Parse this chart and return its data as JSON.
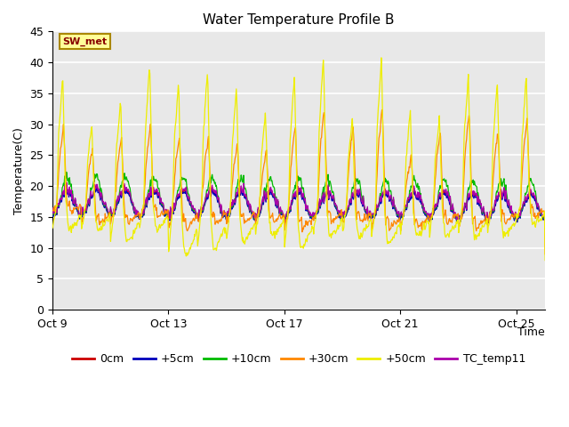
{
  "title": "Water Temperature Profile B",
  "xlabel": "Time",
  "ylabel": "Temperature(C)",
  "ylim": [
    0,
    45
  ],
  "yticks": [
    0,
    5,
    10,
    15,
    20,
    25,
    30,
    35,
    40,
    45
  ],
  "xtick_labels": [
    "Oct 9",
    "Oct 13",
    "Oct 17",
    "Oct 21",
    "Oct 25"
  ],
  "xtick_positions": [
    0,
    4,
    8,
    12,
    16
  ],
  "legend_labels": [
    "0cm",
    "+5cm",
    "+10cm",
    "+30cm",
    "+50cm",
    "TC_temp11"
  ],
  "legend_colors": [
    "#cc0000",
    "#0000bb",
    "#00bb00",
    "#ff8800",
    "#eeee00",
    "#aa00aa"
  ],
  "annotation_text": "SW_met",
  "annotation_box_color": "#ffff99",
  "annotation_border_color": "#aa8800",
  "plot_bg_color": "#e8e8e8",
  "grid_color": "#ffffff",
  "num_days": 17,
  "pts_per_day": 48,
  "base_temp": 17.5,
  "base_trend": -0.04,
  "spike_50_peaks": [
    38,
    30,
    34,
    40,
    37,
    39,
    36,
    32,
    38,
    41,
    31,
    41,
    32,
    31,
    38,
    37,
    38
  ],
  "spike_50_mins": [
    13,
    13,
    11,
    13,
    9,
    10,
    11,
    12,
    10,
    12,
    12,
    11,
    12,
    12,
    12,
    12,
    14
  ],
  "spike_30_peaks": [
    30,
    26,
    28,
    30,
    28,
    28,
    27,
    26,
    30,
    33,
    30,
    33,
    25,
    29,
    32,
    29,
    31
  ],
  "spike_30_mins": [
    16,
    14,
    14,
    15,
    13,
    14,
    14,
    14,
    13,
    14,
    14,
    13,
    13,
    14,
    13,
    14,
    15
  ],
  "base_amp": 2.0,
  "base_noise": 0.5,
  "green_extra_amp": 2.0,
  "figure_width": 6.4,
  "figure_height": 4.8,
  "dpi": 100
}
